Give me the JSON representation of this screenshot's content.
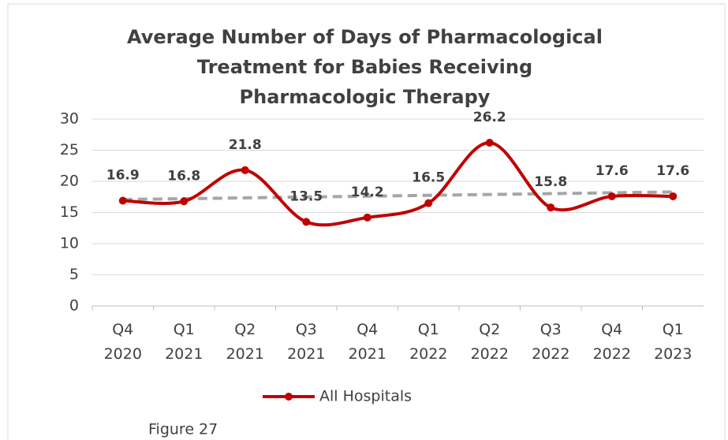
{
  "chart_data": {
    "type": "line",
    "title": "Average Number of Days of Pharmacological Treatment for Babies Receiving Pharmacologic Therapy",
    "categories": [
      "Q4 2020",
      "Q1 2021",
      "Q2 2021",
      "Q3 2021",
      "Q4 2021",
      "Q1 2022",
      "Q2 2022",
      "Q3 2022",
      "Q4 2022",
      "Q1 2023"
    ],
    "series": [
      {
        "name": "All Hospitals",
        "color": "#c00000",
        "values": [
          16.9,
          16.8,
          21.8,
          13.5,
          14.2,
          16.5,
          26.2,
          15.8,
          17.6,
          17.6
        ]
      }
    ],
    "ylim": [
      0,
      30
    ],
    "yticks": [
      0,
      5,
      10,
      15,
      20,
      25,
      30
    ],
    "grid": true,
    "trendline": {
      "color": "#a6a6a6"
    },
    "legend": "bottom",
    "annotation": "Figure 27"
  }
}
